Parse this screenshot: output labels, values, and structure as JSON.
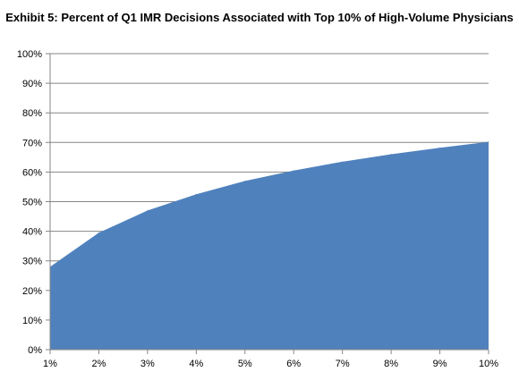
{
  "chart_data": {
    "type": "area",
    "title": "Exhibit 5: Percent of Q1 IMR Decisions Associated with Top 10% of High-Volume Physicians",
    "xlabel": "",
    "ylabel": "",
    "categories": [
      "1%",
      "2%",
      "3%",
      "4%",
      "5%",
      "6%",
      "7%",
      "8%",
      "9%",
      "10%"
    ],
    "series": [
      {
        "values": [
          28,
          39.5,
          47,
          52.5,
          57,
          60.5,
          63.5,
          66,
          68.2,
          70.2
        ]
      }
    ],
    "ylim": [
      0,
      100
    ],
    "yticks": [
      "0%",
      "10%",
      "20%",
      "30%",
      "40%",
      "50%",
      "60%",
      "70%",
      "80%",
      "90%",
      "100%"
    ],
    "grid": true,
    "legend": "none",
    "colors": {
      "area": "#4f81bd",
      "grid": "#868686",
      "axis": "#868686"
    }
  }
}
